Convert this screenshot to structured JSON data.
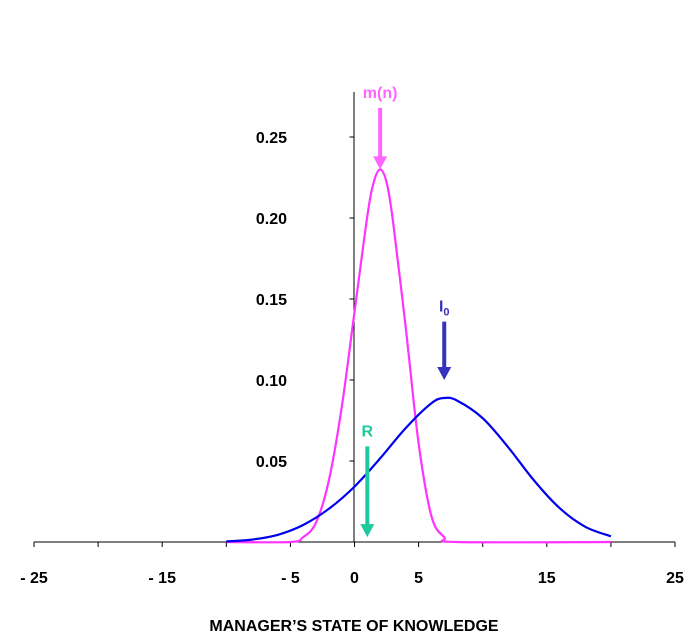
{
  "chart_data": {
    "type": "line",
    "xlabel": "MANAGER’S STATE OF KNOWLEDGE",
    "xlim": [
      -25,
      25
    ],
    "ylim": [
      0,
      0.25
    ],
    "x_ticks": [
      -25,
      -20,
      -15,
      -10,
      -5,
      0,
      5,
      10,
      15,
      20,
      25
    ],
    "x_tick_labels": [
      {
        "value": -25,
        "label": "- 25"
      },
      {
        "value": -15,
        "label": "- 15"
      },
      {
        "value": -5,
        "label": "- 5"
      },
      {
        "value": 0,
        "label": "0"
      },
      {
        "value": 5,
        "label": "5"
      },
      {
        "value": 15,
        "label": "15"
      },
      {
        "value": 25,
        "label": "25"
      }
    ],
    "y_ticks": [
      0,
      0.05,
      0.1,
      0.15,
      0.2,
      0.25
    ],
    "y_tick_labels": [
      {
        "value": 0.05,
        "label": "0.05"
      },
      {
        "value": 0.1,
        "label": "0.10"
      },
      {
        "value": 0.15,
        "label": "0.15"
      },
      {
        "value": 0.2,
        "label": "0.20"
      },
      {
        "value": 0.25,
        "label": "0.25"
      }
    ],
    "grid": false,
    "series": [
      {
        "color": "#ff33ff",
        "x": [
          -10,
          -5,
          -4,
          -3,
          -2,
          -1,
          0,
          1,
          1.5,
          2,
          2.5,
          3,
          4,
          5,
          6,
          7,
          8,
          20
        ],
        "y": [
          0,
          0,
          0.003,
          0.012,
          0.038,
          0.083,
          0.142,
          0.201,
          0.222,
          0.23,
          0.222,
          0.198,
          0.132,
          0.061,
          0.016,
          0.003,
          0,
          0
        ]
      },
      {
        "color": "#0000ee",
        "x": [
          -10,
          -8,
          -6,
          -4,
          -2,
          0,
          2,
          4,
          6,
          7,
          8,
          10,
          12,
          14,
          16,
          18,
          20
        ],
        "y": [
          0.0004,
          0.0015,
          0.0044,
          0.0105,
          0.0205,
          0.0342,
          0.0516,
          0.0704,
          0.0857,
          0.0889,
          0.0873,
          0.0764,
          0.0584,
          0.038,
          0.0209,
          0.0094,
          0.0035
        ]
      }
    ],
    "annotations": [
      {
        "label": "m(n)",
        "sub": "",
        "color": "#ff66ff",
        "x": 2,
        "y_start": 0.268,
        "y_end": 0.23
      },
      {
        "label": "I",
        "sub": "0",
        "color": "#3333bb",
        "x": 7,
        "y_start": 0.136,
        "y_end": 0.1
      },
      {
        "label": "R",
        "sub": "",
        "color": "#1ec99e",
        "x": 1,
        "y_start": 0.059,
        "y_end": 0.003
      }
    ]
  }
}
